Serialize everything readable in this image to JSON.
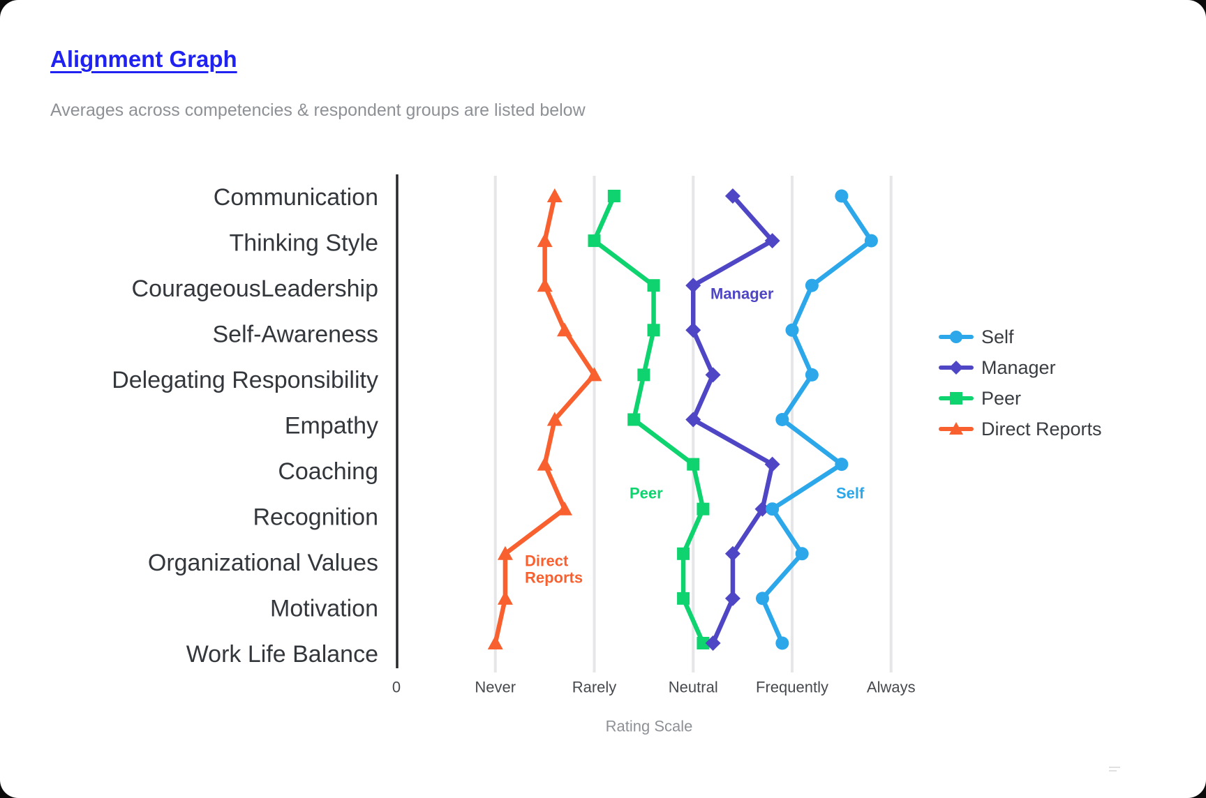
{
  "title": "Alignment Graph",
  "subtitle": "Averages across competencies & respondent groups are listed below",
  "colors": {
    "title_link": "#1F22F0",
    "axis_line": "#26282b",
    "gridline": "#e6e6e8",
    "category_text": "#33373c",
    "tick_text": "#46494e",
    "muted_text": "#8d9196",
    "legend_text": "#393d42"
  },
  "chart_data": {
    "type": "line",
    "orientation": "horizontal-categories",
    "title": "Alignment Graph",
    "categories": [
      "Communication",
      "Thinking Style",
      "CourageousLeadership",
      "Self-Awareness",
      "Delegating Responsibility",
      "Empathy",
      "Coaching",
      "Recognition",
      "Organizational Values",
      "Motivation",
      "Work Life Balance"
    ],
    "series": [
      {
        "name": "Direct Reports",
        "marker": "triangle",
        "color": "#F8612F",
        "values": [
          1.6,
          1.5,
          1.5,
          1.7,
          2.0,
          1.6,
          1.5,
          1.7,
          1.1,
          1.1,
          1.0
        ]
      },
      {
        "name": "Peer",
        "marker": "square",
        "color": "#0FD36E",
        "values": [
          2.2,
          2.0,
          2.6,
          2.6,
          2.5,
          2.4,
          3.0,
          3.1,
          2.9,
          2.9,
          3.1
        ]
      },
      {
        "name": "Manager",
        "marker": "diamond",
        "color": "#4F46C5",
        "values": [
          3.4,
          3.8,
          3.0,
          3.0,
          3.2,
          3.0,
          3.8,
          3.7,
          3.4,
          3.4,
          3.2
        ]
      },
      {
        "name": "Self",
        "marker": "circle",
        "color": "#2BA7EA",
        "values": [
          4.5,
          4.8,
          4.2,
          4.0,
          4.2,
          3.9,
          4.5,
          3.8,
          4.1,
          3.7,
          3.9
        ]
      }
    ],
    "x_axis": {
      "label": "Rating Scale",
      "range": [
        0,
        5.2
      ],
      "ticks": [
        {
          "value": 0,
          "label": "0"
        },
        {
          "value": 1,
          "label": "Never"
        },
        {
          "value": 2,
          "label": "Rarely"
        },
        {
          "value": 3,
          "label": "Neutral"
        },
        {
          "value": 4,
          "label": "Frequently"
        },
        {
          "value": 5,
          "label": "Always"
        }
      ],
      "grid": true
    },
    "annotations": [
      {
        "text": "Manager",
        "series": "Manager"
      },
      {
        "text": "Peer",
        "series": "Peer"
      },
      {
        "text": "Self",
        "series": "Self"
      },
      {
        "text": "Direct\nReports",
        "series": "Direct Reports"
      }
    ],
    "legend": {
      "position": "right",
      "entries": [
        "Self",
        "Manager",
        "Peer",
        "Direct Reports"
      ]
    }
  }
}
